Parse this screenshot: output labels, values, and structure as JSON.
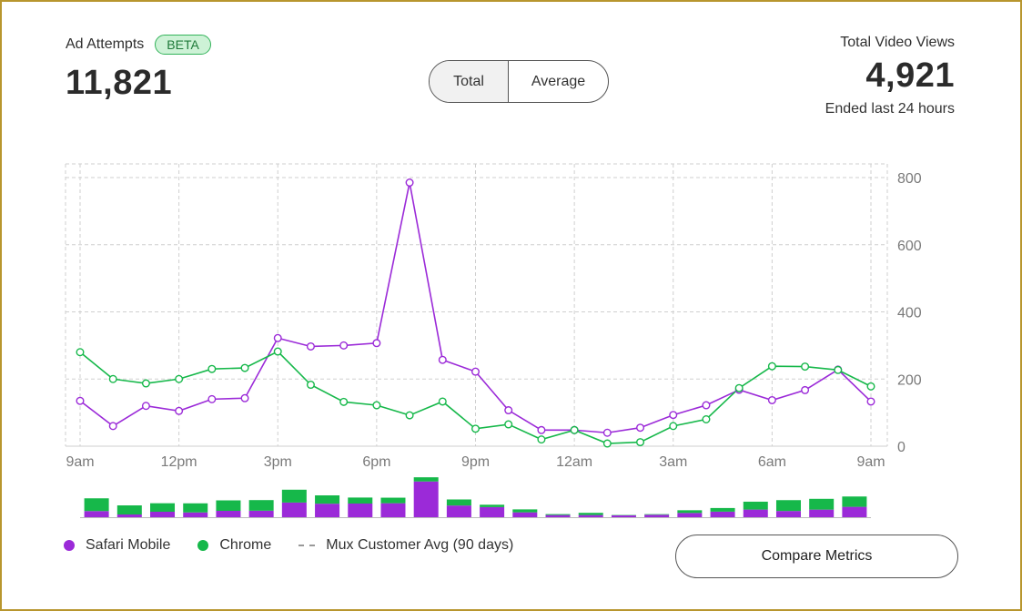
{
  "header": {
    "left_label": "Ad Attempts",
    "badge": "BETA",
    "left_value": "11,821",
    "right_label": "Total Video Views",
    "right_value": "4,921",
    "right_sub": "Ended last 24 hours"
  },
  "toggle": {
    "total": "Total",
    "average": "Average",
    "selected": "Total"
  },
  "legend": {
    "safari": "Safari Mobile",
    "chrome": "Chrome",
    "avg": "Mux Customer Avg (90 days)"
  },
  "compare_button": "Compare Metrics",
  "colors": {
    "safari": "#9b2ad8",
    "chrome": "#16b84a",
    "grid": "#cfcfcf",
    "axis_text": "#7a7a7a"
  },
  "chart_data": {
    "type": "line",
    "x_ticks": [
      "9am",
      "12pm",
      "3pm",
      "6pm",
      "9pm",
      "12am",
      "3am",
      "6am",
      "9am"
    ],
    "y_ticks": [
      0,
      200,
      400,
      600,
      800
    ],
    "ylim": [
      0,
      800
    ],
    "grid": true,
    "series": [
      {
        "name": "Safari Mobile",
        "color": "#9b2ad8",
        "values": [
          135,
          60,
          120,
          105,
          140,
          143,
          322,
          297,
          300,
          307,
          785,
          257,
          222,
          107,
          48,
          48,
          40,
          55,
          93,
          122,
          168,
          137,
          167,
          228,
          133
        ]
      },
      {
        "name": "Chrome",
        "color": "#16b84a",
        "values": [
          280,
          200,
          187,
          200,
          230,
          233,
          282,
          183,
          132,
          122,
          92,
          133,
          52,
          65,
          20,
          48,
          8,
          12,
          60,
          80,
          173,
          238,
          237,
          227,
          178
        ]
      }
    ]
  }
}
